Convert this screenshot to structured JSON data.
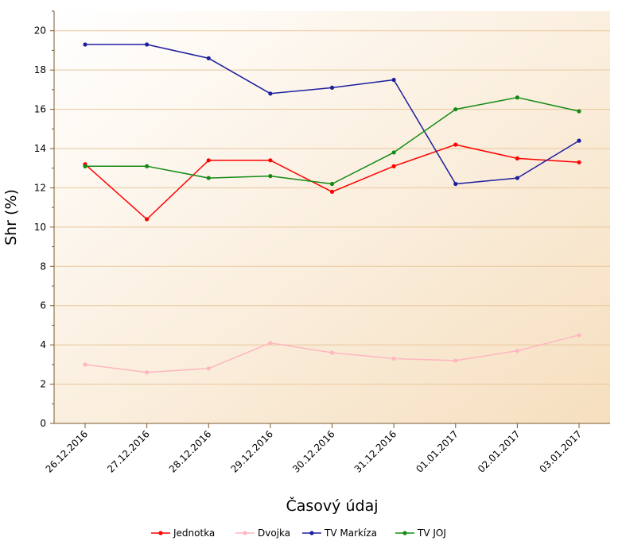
{
  "chart_data": {
    "type": "line",
    "title": "",
    "xlabel": "Časový údaj",
    "ylabel": "Shr (%)",
    "ylim": [
      0,
      21
    ],
    "yticks": [
      0,
      2,
      4,
      6,
      8,
      10,
      12,
      14,
      16,
      18,
      20
    ],
    "ytick_labels": [
      "0",
      "2",
      "4",
      "6",
      "8",
      "10",
      "12",
      "14",
      "16",
      "18",
      "20"
    ],
    "grid": true,
    "legend_position": "bottom",
    "categories": [
      "26.12.2016",
      "27.12.2016",
      "28.12.2016",
      "29.12.2016",
      "30.12.2016",
      "31.12.2016",
      "01.01.2017",
      "02.01.2017",
      "03.01.2017"
    ],
    "series": [
      {
        "name": "Jednotka",
        "color": "#ff0000",
        "values": [
          13.2,
          10.4,
          13.4,
          13.4,
          11.8,
          13.1,
          14.2,
          13.5,
          13.3
        ]
      },
      {
        "name": "Dvojka",
        "color": "#ffb6c1",
        "values": [
          3.0,
          2.6,
          2.8,
          4.1,
          3.6,
          3.3,
          3.2,
          3.7,
          4.5
        ]
      },
      {
        "name": "TV Markíza",
        "color": "#1e1e9e",
        "values": [
          19.3,
          19.3,
          18.6,
          16.8,
          17.1,
          17.5,
          12.2,
          12.5,
          14.4
        ]
      },
      {
        "name": "TV JOJ",
        "color": "#138a13",
        "values": [
          13.1,
          13.1,
          12.5,
          12.6,
          12.2,
          13.8,
          16.0,
          16.6,
          15.9
        ]
      }
    ]
  }
}
